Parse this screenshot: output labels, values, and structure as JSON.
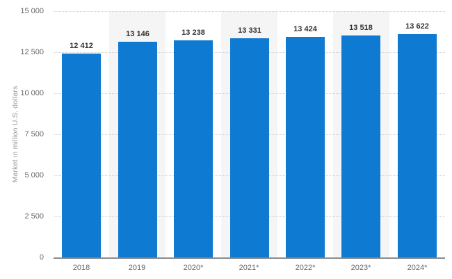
{
  "chart_data": {
    "type": "bar",
    "categories": [
      "2018",
      "2019",
      "2020*",
      "2021*",
      "2022*",
      "2023*",
      "2024*"
    ],
    "values": [
      12412,
      13146,
      13238,
      13331,
      13424,
      13518,
      13622
    ],
    "value_labels": [
      "12 412",
      "13 146",
      "13 238",
      "13 331",
      "13 424",
      "13 518",
      "13 622"
    ],
    "title": "",
    "xlabel": "",
    "ylabel": "Market in million U.S. dollars",
    "ylim": [
      0,
      15000
    ],
    "yticks": [
      0,
      2500,
      5000,
      7500,
      10000,
      12500,
      15000
    ],
    "ytick_labels": [
      "0",
      "2 500",
      "5 000",
      "7 500",
      "10 000",
      "12 500",
      "15 000"
    ],
    "grid": true,
    "gridline_style": "dotted",
    "legend": false,
    "band_pattern": "alternating, gray on 2019/2021/2023 columns",
    "colors": {
      "bar": "#0f7ad1",
      "band": "#f5f5f5",
      "gridline": "#cfcfcf",
      "axis_line": "#8c8c8c",
      "tick_label": "#666666",
      "data_label": "#333333",
      "axis_title": "#9a9a9a",
      "background": "#ffffff"
    }
  }
}
